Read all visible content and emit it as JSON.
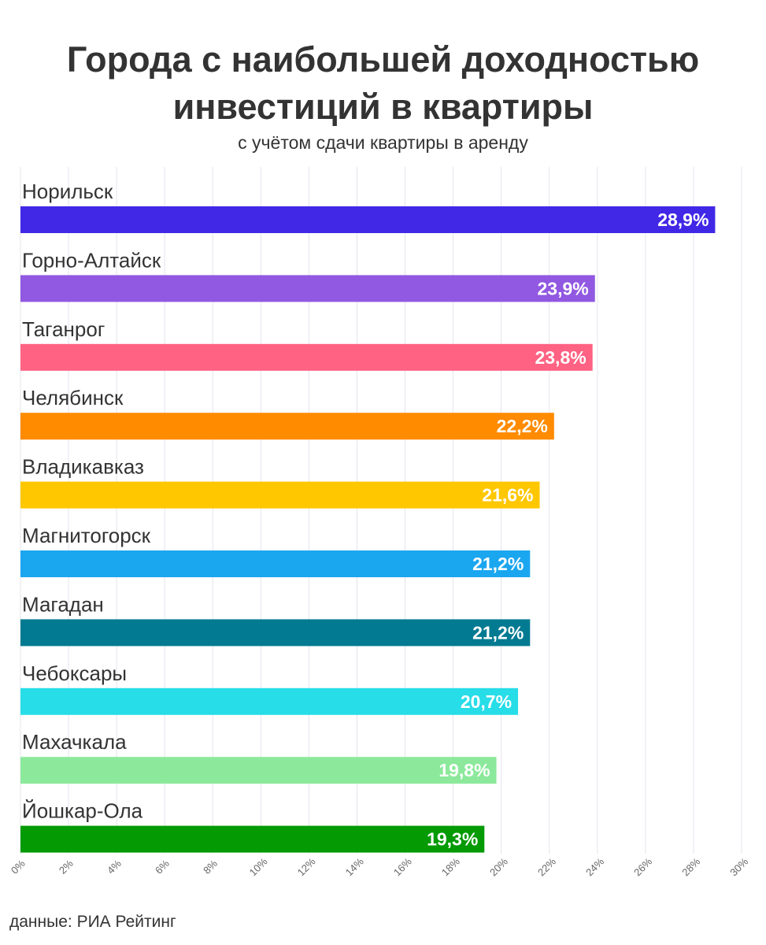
{
  "chart_data": {
    "type": "bar",
    "orientation": "horizontal",
    "title": "Города с наибольшей доходностью инвестиций в квартиры",
    "subtitle": "с учётом сдачи квартиры в аренду",
    "source": "данные: РИА Рейтинг",
    "categories": [
      "Норильск",
      "Горно-Алтайск",
      "Таганрог",
      "Челябинск",
      "Владикавказ",
      "Магнитогорск",
      "Магадан",
      "Чебоксары",
      "Махачкала",
      "Йошкар-Ола"
    ],
    "values": [
      28.9,
      23.9,
      23.8,
      22.2,
      21.6,
      21.2,
      21.2,
      20.7,
      19.8,
      19.3
    ],
    "value_labels": [
      "28,9%",
      "23,9%",
      "23,8%",
      "22,2%",
      "21,6%",
      "21,2%",
      "21,2%",
      "20,7%",
      "19,8%",
      "19,3%"
    ],
    "colors": [
      "#4128e6",
      "#9158e1",
      "#ff6283",
      "#ff8b00",
      "#fec700",
      "#1ba6f0",
      "#027a91",
      "#26dde8",
      "#8ce99b",
      "#039a04"
    ],
    "xlim": [
      0,
      30
    ],
    "xticks": [
      "0%",
      "2%",
      "4%",
      "6%",
      "8%",
      "10%",
      "12%",
      "14%",
      "16%",
      "18%",
      "20%",
      "22%",
      "24%",
      "26%",
      "28%",
      "30%"
    ],
    "grid": true,
    "legend": "none"
  }
}
